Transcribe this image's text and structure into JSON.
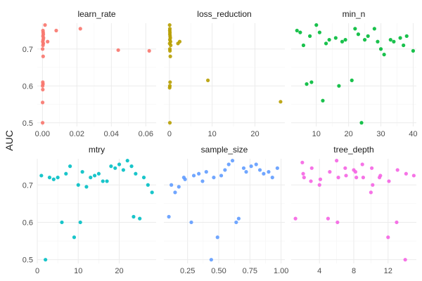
{
  "chart_data": {
    "type": "scatter",
    "y_axis_title": "AUC",
    "grid": true,
    "legend": "none",
    "facets": [
      {
        "name": "learn_rate",
        "color": "#F8766D",
        "xlim": [
          -0.003,
          0.066
        ],
        "ylim": [
          0.49,
          0.77
        ],
        "x_ticks": [
          0.0,
          0.02,
          0.04,
          0.06
        ],
        "x_tick_labels": [
          "0.00",
          "0.02",
          "0.04",
          "0.06"
        ],
        "y_ticks": [
          0.5,
          0.6,
          0.7
        ],
        "y_tick_labels": [
          "0.5",
          "0.6",
          "0.7"
        ],
        "points": [
          [
            0.0003,
            0.75
          ],
          [
            0.0004,
            0.745
          ],
          [
            0.0005,
            0.74
          ],
          [
            0.0003,
            0.735
          ],
          [
            0.0006,
            0.73
          ],
          [
            0.0004,
            0.725
          ],
          [
            0.0002,
            0.72
          ],
          [
            0.0005,
            0.715
          ],
          [
            0.0003,
            0.71
          ],
          [
            0.0001,
            0.7
          ],
          [
            0.0004,
            0.68
          ],
          [
            0.0002,
            0.61
          ],
          [
            0.0003,
            0.605
          ],
          [
            0.0001,
            0.6
          ],
          [
            0.0002,
            0.59
          ],
          [
            0.0001,
            0.555
          ],
          [
            0.0001,
            0.5
          ],
          [
            0.0015,
            0.765
          ],
          [
            0.003,
            0.72
          ],
          [
            0.008,
            0.75
          ],
          [
            0.022,
            0.755
          ],
          [
            0.044,
            0.697
          ],
          [
            0.062,
            0.695
          ]
        ]
      },
      {
        "name": "loss_reduction",
        "color": "#B79F00",
        "xlim": [
          -1.3,
          27.0
        ],
        "ylim": [
          0.49,
          0.77
        ],
        "x_ticks": [
          0,
          10,
          20
        ],
        "x_tick_labels": [
          "0",
          "10",
          "20"
        ],
        "y_ticks": [
          0.5,
          0.6,
          0.7
        ],
        "y_tick_labels": [
          "0.5",
          "0.6",
          "0.7"
        ],
        "points": [
          [
            0.05,
            0.765
          ],
          [
            0.1,
            0.755
          ],
          [
            0.08,
            0.75
          ],
          [
            0.12,
            0.745
          ],
          [
            0.1,
            0.74
          ],
          [
            0.15,
            0.735
          ],
          [
            0.2,
            0.73
          ],
          [
            0.1,
            0.725
          ],
          [
            0.25,
            0.72
          ],
          [
            0.05,
            0.715
          ],
          [
            0.3,
            0.71
          ],
          [
            0.1,
            0.7
          ],
          [
            0.12,
            0.695
          ],
          [
            0.2,
            0.68
          ],
          [
            0.15,
            0.61
          ],
          [
            0.1,
            0.6
          ],
          [
            0.05,
            0.595
          ],
          [
            0.1,
            0.5
          ],
          [
            2.0,
            0.715
          ],
          [
            2.4,
            0.72
          ],
          [
            9.0,
            0.615
          ],
          [
            26.0,
            0.557
          ]
        ]
      },
      {
        "name": "min_n",
        "color": "#00BA38",
        "xlim": [
          2.2,
          41.0
        ],
        "ylim": [
          0.49,
          0.77
        ],
        "x_ticks": [
          10,
          20,
          30,
          40
        ],
        "x_tick_labels": [
          "10",
          "20",
          "30",
          "40"
        ],
        "y_ticks": [
          0.5,
          0.6,
          0.7
        ],
        "y_tick_labels": [
          "0.5",
          "0.6",
          "0.7"
        ],
        "points": [
          [
            4,
            0.75
          ],
          [
            5,
            0.745
          ],
          [
            6,
            0.71
          ],
          [
            7,
            0.605
          ],
          [
            8,
            0.735
          ],
          [
            8.5,
            0.61
          ],
          [
            10,
            0.765
          ],
          [
            11,
            0.745
          ],
          [
            12,
            0.56
          ],
          [
            13,
            0.715
          ],
          [
            14,
            0.725
          ],
          [
            16,
            0.73
          ],
          [
            17,
            0.6
          ],
          [
            18,
            0.72
          ],
          [
            19,
            0.725
          ],
          [
            21,
            0.615
          ],
          [
            22,
            0.755
          ],
          [
            23,
            0.74
          ],
          [
            24,
            0.5
          ],
          [
            25,
            0.725
          ],
          [
            26,
            0.735
          ],
          [
            28,
            0.755
          ],
          [
            29,
            0.72
          ],
          [
            30,
            0.7
          ],
          [
            31,
            0.685
          ],
          [
            33,
            0.725
          ],
          [
            34,
            0.72
          ],
          [
            36,
            0.73
          ],
          [
            37,
            0.71
          ],
          [
            38,
            0.735
          ],
          [
            40,
            0.695
          ]
        ]
      },
      {
        "name": "mtry",
        "color": "#00BFC4",
        "xlim": [
          0.0,
          29.0
        ],
        "ylim": [
          0.49,
          0.77
        ],
        "x_ticks": [
          0,
          10,
          20
        ],
        "x_tick_labels": [
          "0",
          "10",
          "20"
        ],
        "y_ticks": [
          0.5,
          0.6,
          0.7
        ],
        "y_tick_labels": [
          "0.5",
          "0.6",
          "0.7"
        ],
        "points": [
          [
            1,
            0.725
          ],
          [
            2,
            0.5
          ],
          [
            3,
            0.72
          ],
          [
            4,
            0.715
          ],
          [
            5,
            0.72
          ],
          [
            6,
            0.6
          ],
          [
            7,
            0.73
          ],
          [
            8,
            0.75
          ],
          [
            9,
            0.56
          ],
          [
            10,
            0.7
          ],
          [
            10.5,
            0.6
          ],
          [
            11,
            0.735
          ],
          [
            12,
            0.695
          ],
          [
            13,
            0.72
          ],
          [
            14,
            0.725
          ],
          [
            15,
            0.73
          ],
          [
            16,
            0.71
          ],
          [
            17,
            0.71
          ],
          [
            18,
            0.75
          ],
          [
            19,
            0.745
          ],
          [
            20,
            0.755
          ],
          [
            21,
            0.74
          ],
          [
            22,
            0.765
          ],
          [
            23,
            0.75
          ],
          [
            23.5,
            0.615
          ],
          [
            24,
            0.73
          ],
          [
            25,
            0.61
          ],
          [
            26,
            0.72
          ],
          [
            27,
            0.7
          ],
          [
            28,
            0.68
          ]
        ]
      },
      {
        "name": "sample_size",
        "color": "#619CFF",
        "xlim": [
          0.06,
          1.03
        ],
        "ylim": [
          0.49,
          0.77
        ],
        "x_ticks": [
          0.25,
          0.5,
          0.75,
          1.0
        ],
        "x_tick_labels": [
          "0.25",
          "0.50",
          "0.75",
          "1.00"
        ],
        "y_ticks": [
          0.5,
          0.6,
          0.7
        ],
        "y_tick_labels": [
          "0.5",
          "0.6",
          "0.7"
        ],
        "points": [
          [
            0.1,
            0.615
          ],
          [
            0.12,
            0.7
          ],
          [
            0.15,
            0.68
          ],
          [
            0.18,
            0.695
          ],
          [
            0.22,
            0.72
          ],
          [
            0.23,
            0.715
          ],
          [
            0.28,
            0.6
          ],
          [
            0.3,
            0.725
          ],
          [
            0.34,
            0.73
          ],
          [
            0.37,
            0.71
          ],
          [
            0.4,
            0.735
          ],
          [
            0.44,
            0.5
          ],
          [
            0.46,
            0.72
          ],
          [
            0.49,
            0.56
          ],
          [
            0.52,
            0.725
          ],
          [
            0.55,
            0.74
          ],
          [
            0.58,
            0.755
          ],
          [
            0.61,
            0.765
          ],
          [
            0.64,
            0.6
          ],
          [
            0.66,
            0.61
          ],
          [
            0.7,
            0.745
          ],
          [
            0.72,
            0.735
          ],
          [
            0.76,
            0.75
          ],
          [
            0.8,
            0.755
          ],
          [
            0.83,
            0.74
          ],
          [
            0.86,
            0.73
          ],
          [
            0.9,
            0.735
          ],
          [
            0.93,
            0.72
          ],
          [
            0.97,
            0.745
          ]
        ]
      },
      {
        "name": "tree_depth",
        "color": "#F564E3",
        "xlim": [
          0.7,
          15.3
        ],
        "ylim": [
          0.49,
          0.77
        ],
        "x_ticks": [
          4,
          8,
          12
        ],
        "x_tick_labels": [
          "4",
          "8",
          "12"
        ],
        "y_ticks": [
          0.5,
          0.6,
          0.7
        ],
        "y_tick_labels": [
          "0.5",
          "0.6",
          "0.7"
        ],
        "points": [
          [
            1.2,
            0.61
          ],
          [
            2,
            0.76
          ],
          [
            2.1,
            0.73
          ],
          [
            2.2,
            0.72
          ],
          [
            3,
            0.71
          ],
          [
            3.1,
            0.745
          ],
          [
            4,
            0.7
          ],
          [
            4.1,
            0.715
          ],
          [
            5,
            0.61
          ],
          [
            5.2,
            0.735
          ],
          [
            6,
            0.765
          ],
          [
            6.1,
            0.6
          ],
          [
            6.2,
            0.72
          ],
          [
            7,
            0.745
          ],
          [
            7.1,
            0.725
          ],
          [
            8,
            0.74
          ],
          [
            8.2,
            0.735
          ],
          [
            8.3,
            0.72
          ],
          [
            9,
            0.755
          ],
          [
            9.1,
            0.72
          ],
          [
            10,
            0.68
          ],
          [
            10.1,
            0.745
          ],
          [
            10.2,
            0.7
          ],
          [
            11,
            0.72
          ],
          [
            11.1,
            0.725
          ],
          [
            12,
            0.56
          ],
          [
            12.1,
            0.71
          ],
          [
            13,
            0.6
          ],
          [
            13.1,
            0.74
          ],
          [
            14,
            0.5
          ],
          [
            14.1,
            0.73
          ],
          [
            15,
            0.725
          ]
        ]
      }
    ]
  }
}
